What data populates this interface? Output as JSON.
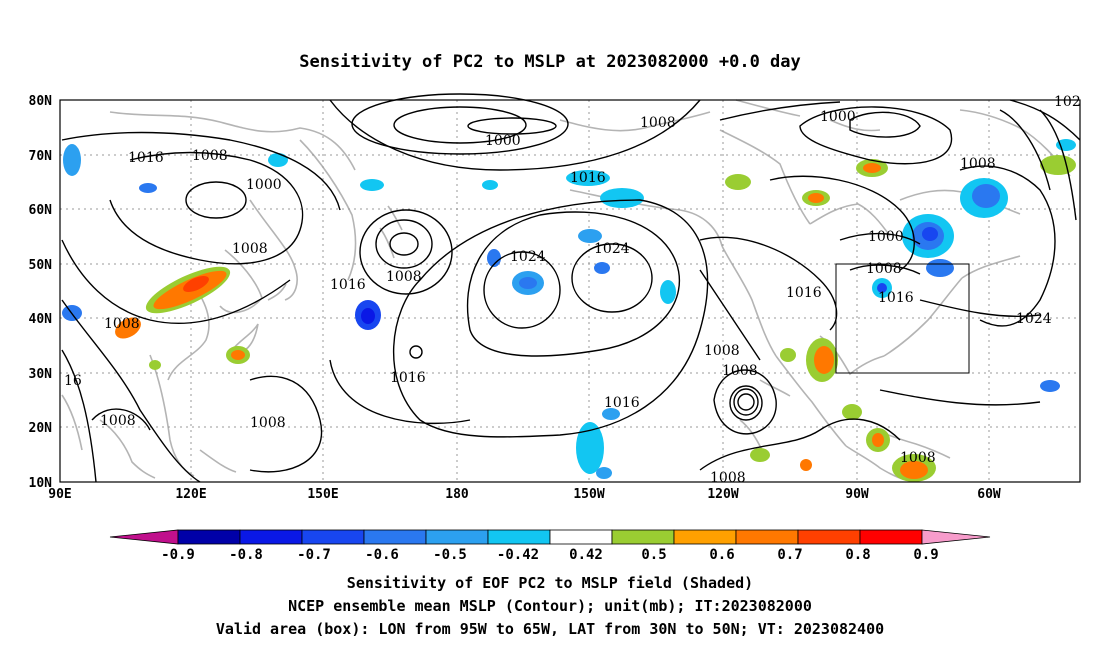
{
  "title": "Sensitivity of PC2 to MSLP at 2023082000 +0.0 day",
  "axes": {
    "lat_labels": [
      "80N",
      "70N",
      "60N",
      "50N",
      "40N",
      "30N",
      "20N",
      "10N"
    ],
    "lon_labels": [
      "90E",
      "120E",
      "150E",
      "180",
      "150W",
      "120W",
      "90W",
      "60W"
    ]
  },
  "contour_labels": [
    {
      "text": "1000"
    },
    {
      "text": "1008"
    },
    {
      "text": "1000"
    },
    {
      "text": "1016"
    },
    {
      "text": "1008"
    },
    {
      "text": "1000"
    },
    {
      "text": "1008"
    },
    {
      "text": "1016"
    },
    {
      "text": "1024"
    },
    {
      "text": "1024"
    },
    {
      "text": "1008"
    },
    {
      "text": "1016"
    },
    {
      "text": "1008"
    },
    {
      "text": "1016"
    },
    {
      "text": "1016"
    },
    {
      "text": "1008"
    },
    {
      "text": "1008"
    },
    {
      "text": "1000"
    },
    {
      "text": "1008"
    },
    {
      "text": "1016"
    },
    {
      "text": "1024"
    },
    {
      "text": "1008"
    },
    {
      "text": "1008"
    },
    {
      "text": "1008"
    },
    {
      "text": "1008"
    },
    {
      "text": "16"
    },
    {
      "text": "102"
    }
  ],
  "colorbar": {
    "tick_labels": [
      "-0.9",
      "-0.8",
      "-0.7",
      "-0.6",
      "-0.5",
      "-0.42",
      "0.42",
      "0.5",
      "0.6",
      "0.7",
      "0.8",
      "0.9"
    ],
    "colors": [
      "#c0108c",
      "#0000a8",
      "#0a18e6",
      "#1846f0",
      "#2a78f0",
      "#2ca0f0",
      "#12c6f2",
      "#ffffff",
      "#9acd32",
      "#ffa000",
      "#ff7800",
      "#ff4000",
      "#ff0000",
      "#f79ccb"
    ]
  },
  "captions": {
    "line1": "Sensitivity of EOF PC2 to MSLP field (Shaded)",
    "line2": "NCEP ensemble mean MSLP (Contour); unit(mb); IT:2023082000",
    "line3": "Valid area (box): LON from 95W to 65W, LAT from 30N to 50N; VT: 2023082400"
  },
  "valid_box": {
    "lon_west": "95W",
    "lon_east": "65W",
    "lat_south": "30N",
    "lat_north": "50N"
  }
}
